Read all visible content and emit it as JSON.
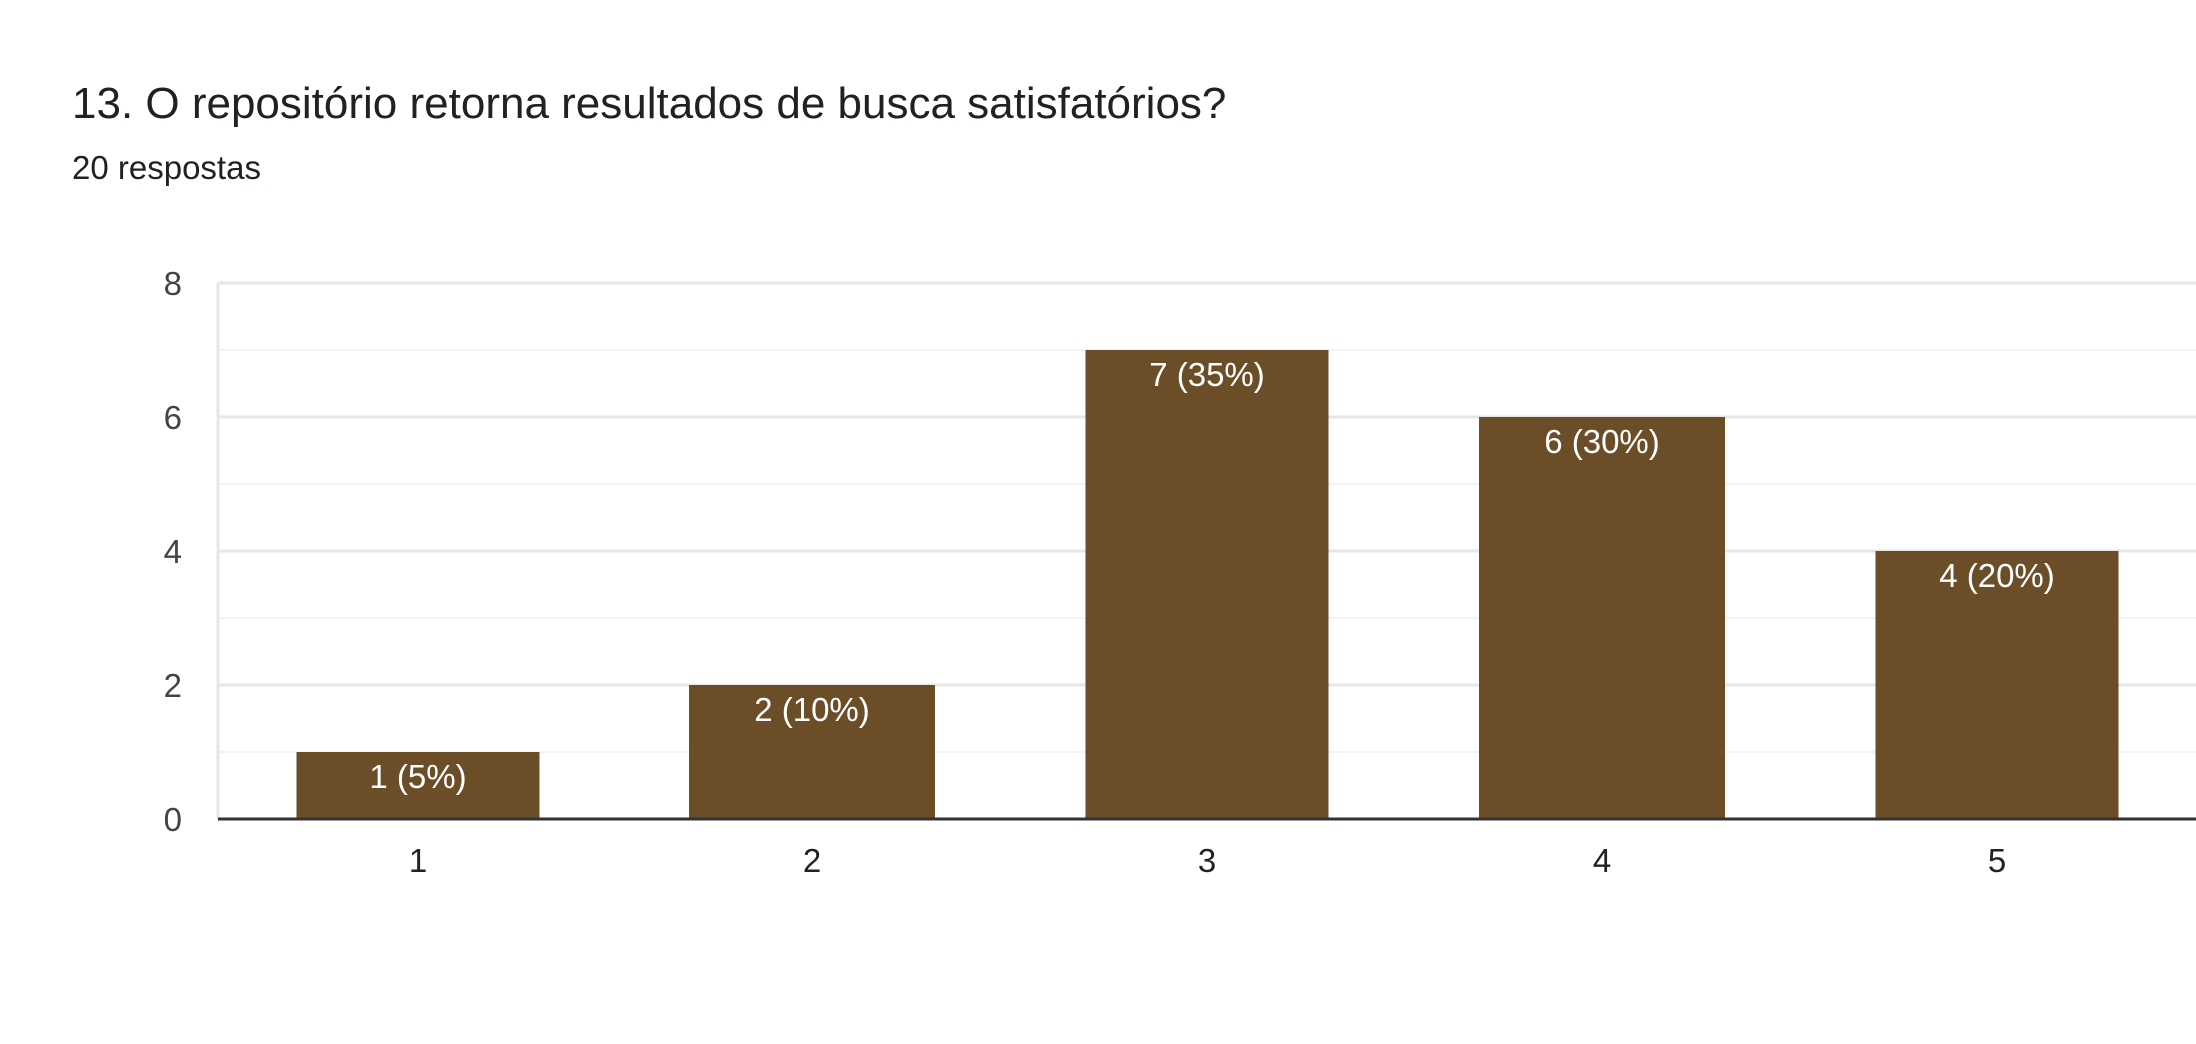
{
  "question": {
    "title": "13. O repositório retorna resultados de busca satisfatórios?",
    "responses": "20 respostas"
  },
  "colors": {
    "bar": "#6b4d28",
    "grid_major": "#e6e6e6",
    "grid_minor": "#f3f3f3",
    "axis": "#333333"
  },
  "chart_data": {
    "type": "bar",
    "categories": [
      "1",
      "2",
      "3",
      "4",
      "5"
    ],
    "values": [
      1,
      2,
      7,
      6,
      4
    ],
    "data_labels": [
      "1 (5%)",
      "2 (10%)",
      "7 (35%)",
      "6 (30%)",
      "4 (20%)"
    ],
    "title": "13. O repositório retorna resultados de busca satisfatórios?",
    "xlabel": "",
    "ylabel": "",
    "ylim": [
      0,
      8
    ],
    "yticks": [
      0,
      2,
      4,
      6,
      8
    ],
    "grid": true,
    "legend": "none"
  }
}
